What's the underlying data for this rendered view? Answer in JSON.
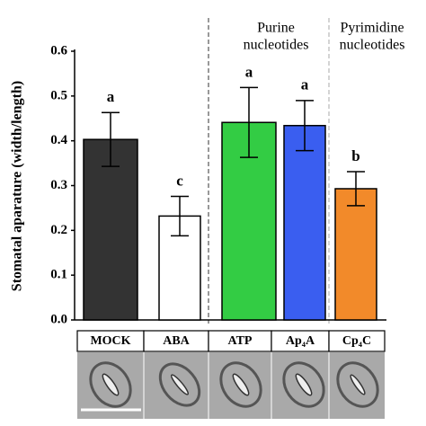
{
  "chart_data": {
    "type": "bar",
    "y_label": "Stomatal aparature (width/length)",
    "categories": [
      "MOCK",
      "ABA",
      "ATP",
      "Ap₄A",
      "Cp₄C"
    ],
    "values": [
      0.403,
      0.232,
      0.441,
      0.434,
      0.293
    ],
    "errors": [
      0.06,
      0.044,
      0.078,
      0.056,
      0.038
    ],
    "letters": [
      "a",
      "c",
      "a",
      "a",
      "b"
    ],
    "colors": [
      "#333333",
      "#ffffff",
      "#33cc44",
      "#3a5ef0",
      "#f28a2a"
    ],
    "groups": [
      {
        "lines": [
          "Purine",
          "nucleotides"
        ]
      },
      {
        "lines": [
          "Pyrimidine",
          "nucleotides"
        ]
      }
    ],
    "ylim": [
      0,
      0.6
    ],
    "yticks": [
      {
        "value": 0,
        "label": "0.0"
      },
      0.1,
      0.2,
      0.3,
      0.4,
      0.5,
      0.6
    ]
  }
}
